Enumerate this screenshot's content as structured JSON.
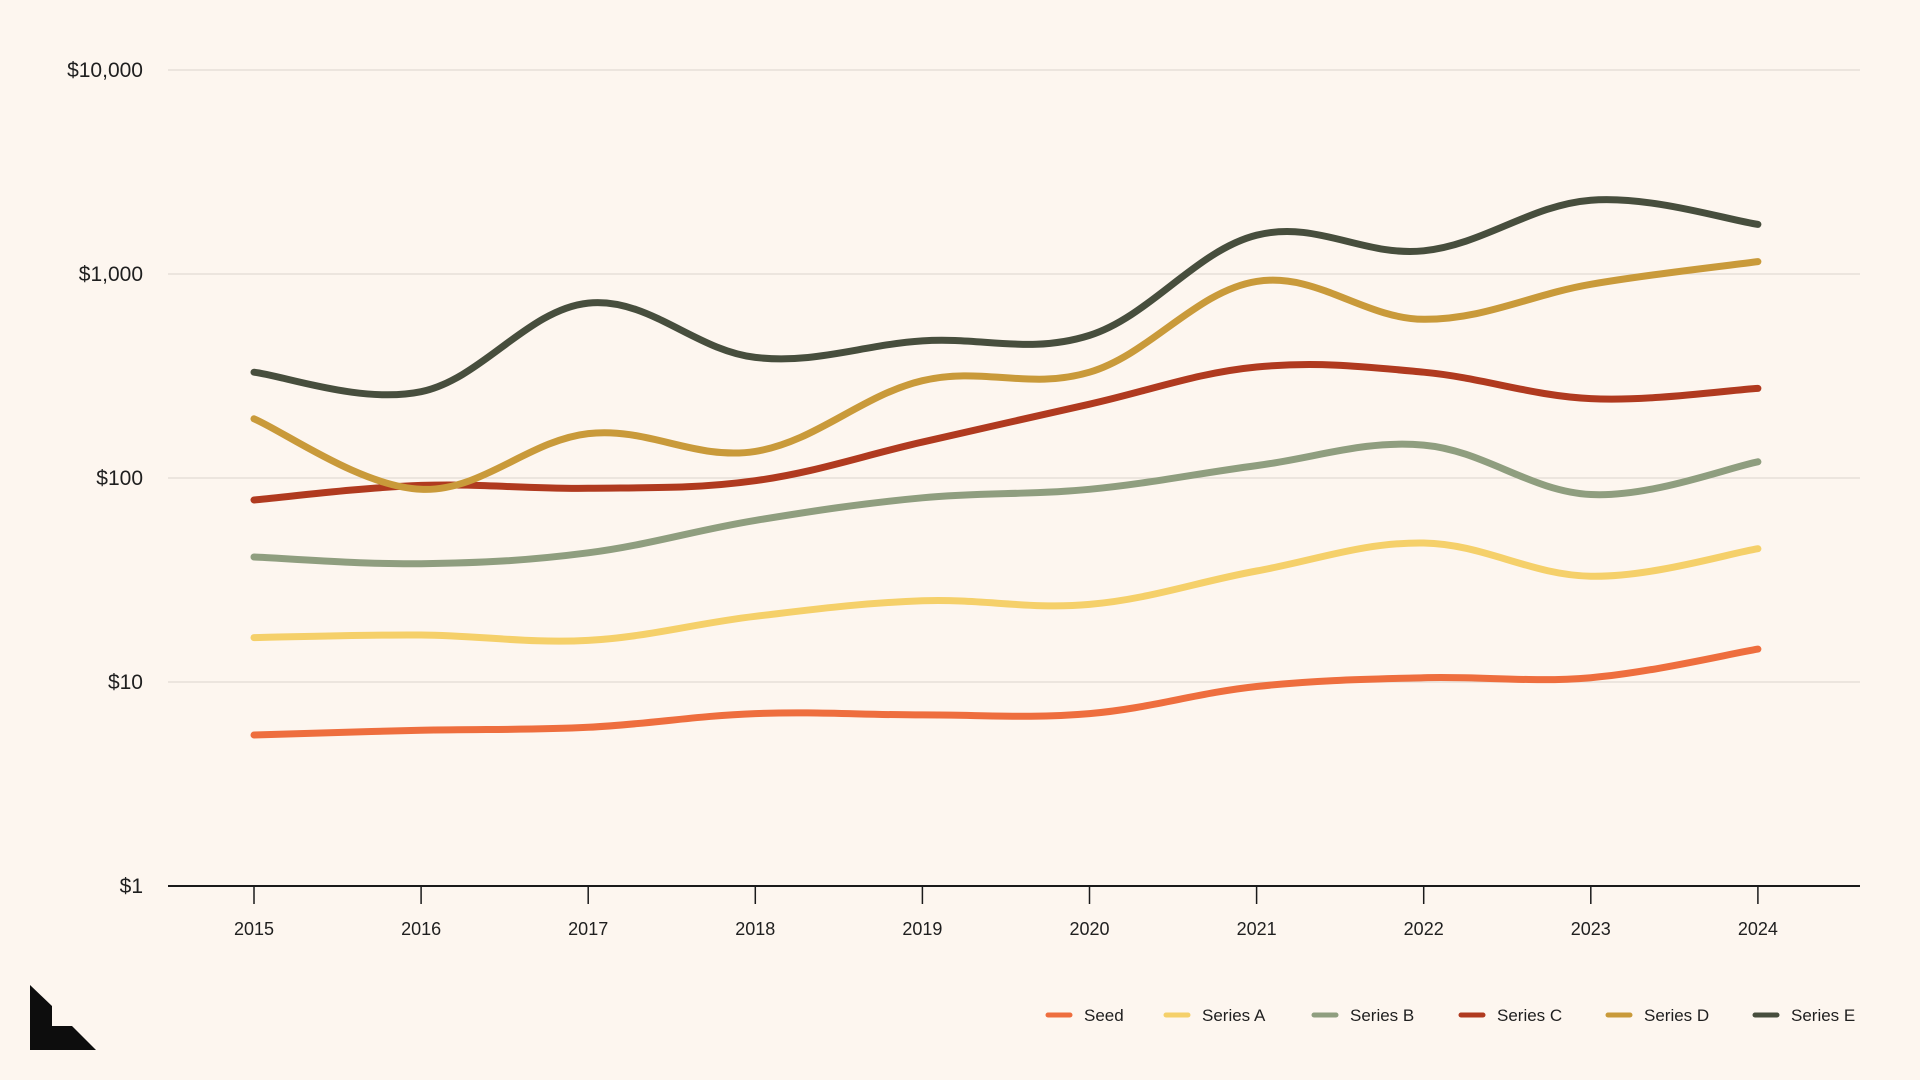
{
  "chart_data": {
    "type": "line",
    "title": "",
    "xlabel": "",
    "ylabel": "",
    "y_scale": "log",
    "ylim": [
      1,
      10000
    ],
    "y_ticks": [
      1,
      10,
      100,
      1000,
      10000
    ],
    "y_tick_labels": [
      "$1",
      "$10",
      "$100",
      "$1,000",
      "$10,000"
    ],
    "x": [
      "2015",
      "2016",
      "2017",
      "2018",
      "2019",
      "2020",
      "2021",
      "2022",
      "2023",
      "2024"
    ],
    "grid": true,
    "legend_position": "bottom-right",
    "series": [
      {
        "name": "Seed",
        "color": "#ee6e3e",
        "values": [
          5.5,
          5.8,
          6.0,
          7.0,
          6.9,
          7.0,
          9.5,
          10.5,
          10.5,
          14.5
        ]
      },
      {
        "name": "Series A",
        "color": "#f5d06a",
        "values": [
          16.5,
          17.0,
          16.0,
          21.0,
          25.0,
          24.0,
          35.0,
          48.0,
          33.0,
          45.0
        ]
      },
      {
        "name": "Series B",
        "color": "#8f9e7f",
        "values": [
          41,
          38,
          43,
          62,
          80,
          88,
          115,
          145,
          83,
          120
        ]
      },
      {
        "name": "Series C",
        "color": "#b03a1f",
        "values": [
          78,
          92,
          89,
          97,
          150,
          230,
          350,
          330,
          245,
          275
        ]
      },
      {
        "name": "Series D",
        "color": "#c99a3a",
        "values": [
          195,
          88,
          165,
          135,
          300,
          330,
          920,
          600,
          890,
          1150
        ]
      },
      {
        "name": "Series E",
        "color": "#474e3d",
        "values": [
          330,
          265,
          720,
          390,
          470,
          500,
          1550,
          1300,
          2300,
          1750
        ]
      }
    ]
  },
  "logo": {
    "icon": "stair-logo-icon"
  }
}
